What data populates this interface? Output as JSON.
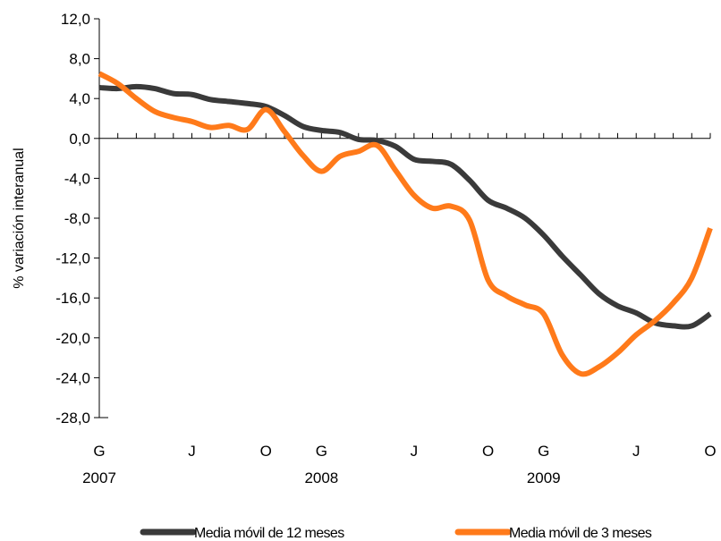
{
  "chart_data": {
    "type": "line",
    "ylabel": "% variación interanual",
    "ylim": [
      -28,
      12
    ],
    "y_ticks": [
      "12,0",
      "8,0",
      "4,0",
      "0,0",
      "-4,0",
      "-8,0",
      "-12,0",
      "-16,0",
      "-20,0",
      "-24,0",
      "-28,0"
    ],
    "x_month_labels": [
      "G",
      "J",
      "O",
      "G",
      "J",
      "O",
      "G",
      "J",
      "O"
    ],
    "x_year_labels": [
      "2007",
      "2008",
      "2009"
    ],
    "legend_position": "bottom",
    "grid": false,
    "x": [
      "2007-01",
      "2007-02",
      "2007-03",
      "2007-04",
      "2007-05",
      "2007-06",
      "2007-07",
      "2007-08",
      "2007-09",
      "2007-10",
      "2007-11",
      "2007-12",
      "2008-01",
      "2008-02",
      "2008-03",
      "2008-04",
      "2008-05",
      "2008-06",
      "2008-07",
      "2008-08",
      "2008-09",
      "2008-10",
      "2008-11",
      "2008-12",
      "2009-01",
      "2009-02",
      "2009-03",
      "2009-04",
      "2009-05",
      "2009-06",
      "2009-07",
      "2009-08",
      "2009-09",
      "2009-10"
    ],
    "series": [
      {
        "name": "Media móvil de 12 meses",
        "color": "#3a3a3a",
        "values": [
          5.1,
          5.0,
          5.2,
          5.0,
          4.5,
          4.4,
          3.9,
          3.7,
          3.5,
          3.2,
          2.3,
          1.2,
          0.8,
          0.6,
          -0.1,
          -0.2,
          -0.8,
          -2.1,
          -2.3,
          -2.6,
          -4.2,
          -6.2,
          -7.0,
          -8.0,
          -9.7,
          -11.8,
          -13.7,
          -15.6,
          -16.8,
          -17.5,
          -18.5,
          -18.8,
          -18.8,
          -17.6
        ]
      },
      {
        "name": "Media móvil de 3 meses",
        "color": "#ff7a1a",
        "values": [
          6.5,
          5.5,
          4.0,
          2.7,
          2.1,
          1.7,
          1.1,
          1.3,
          0.9,
          2.9,
          0.7,
          -1.7,
          -3.3,
          -1.8,
          -1.3,
          -0.7,
          -3.2,
          -5.7,
          -7.0,
          -6.8,
          -8.2,
          -14.2,
          -15.8,
          -16.7,
          -17.6,
          -21.7,
          -23.6,
          -22.9,
          -21.5,
          -19.7,
          -18.3,
          -16.5,
          -14.0,
          -9.0
        ]
      }
    ]
  }
}
